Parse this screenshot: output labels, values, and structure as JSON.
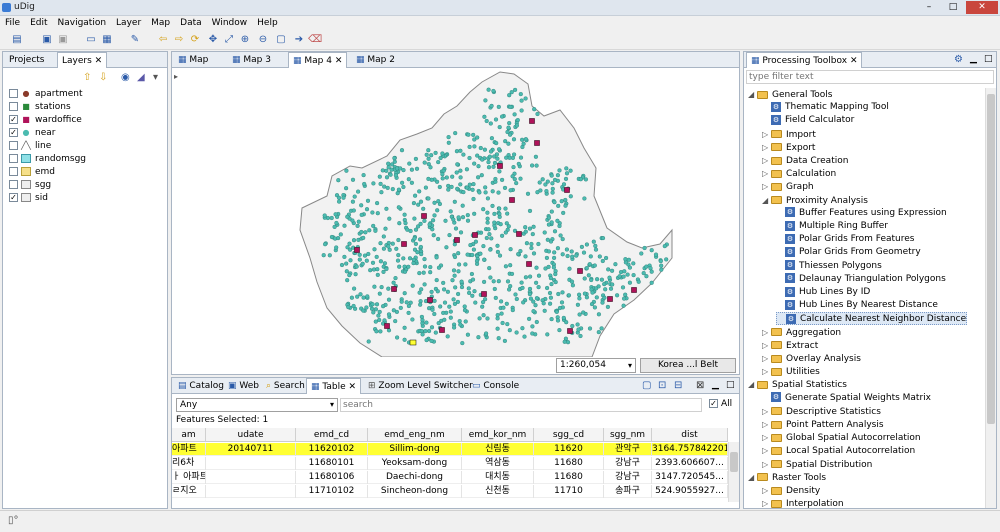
{
  "window": {
    "title": "uDig",
    "min": "–",
    "max": "□",
    "close": "✕"
  },
  "menu": [
    "File",
    "Edit",
    "Navigation",
    "Layer",
    "Map",
    "Data",
    "Window",
    "Help"
  ],
  "left_panel": {
    "tabs": [
      "Projects",
      "Layers"
    ],
    "layers": [
      {
        "name": "apartment",
        "checked": false,
        "symbol": "point-brown"
      },
      {
        "name": "stations",
        "checked": false,
        "symbol": "point-green"
      },
      {
        "name": "wardoffice",
        "checked": true,
        "symbol": "point-magenta"
      },
      {
        "name": "near",
        "checked": true,
        "symbol": "point-cyan"
      },
      {
        "name": "line",
        "checked": false,
        "symbol": "line"
      },
      {
        "name": "randomsgg",
        "checked": false,
        "symbol": "polygon-cyan"
      },
      {
        "name": "emd",
        "checked": false,
        "symbol": "polygon-yellow"
      },
      {
        "name": "sgg",
        "checked": false,
        "symbol": "polygon-gray"
      },
      {
        "name": "sid",
        "checked": true,
        "symbol": "polygon-gray"
      }
    ]
  },
  "map_tabs": [
    "Map",
    "Map 3",
    "Map 4",
    "Map 2"
  ],
  "map_status": {
    "scale": "1:260,054",
    "crs": "Korea ...l Belt"
  },
  "bottom_tabs": [
    "Catalog",
    "Web",
    "Search",
    "Table",
    "Zoom Level Switcher",
    "Console"
  ],
  "table": {
    "filter_value": "Any",
    "search_placeholder": "search",
    "all_label": "All",
    "features_selected": "Features Selected: 1",
    "columns": [
      "am",
      "udate",
      "emd_cd",
      "emd_eng_nm",
      "emd_kor_nm",
      "sgg_cd",
      "sgg_nm",
      "dist"
    ],
    "rows": [
      [
        "아파트",
        "20140711",
        "11620102",
        "Sillim-dong",
        "신림동",
        "11620",
        "관악구",
        "3164.757842201$"
      ],
      [
        "리6차",
        "",
        "11680101",
        "Yeoksam-dong",
        "역삼동",
        "11680",
        "강남구",
        "2393.606607..."
      ],
      [
        "ㅏ 아파트",
        "",
        "11680106",
        "Daechi-dong",
        "대치동",
        "11680",
        "강남구",
        "3147.720545..."
      ],
      [
        "ㄹ지오",
        "",
        "11710102",
        "Sincheon-dong",
        "신천동",
        "11710",
        "송파구",
        "524.9055927..."
      ]
    ]
  },
  "toolbox": {
    "title": "Processing Toolbox",
    "filter_placeholder": "type filter text",
    "tree": [
      {
        "label": "General Tools",
        "level": 1,
        "type": "folder",
        "expanded": true
      },
      {
        "label": "Thematic Mapping Tool",
        "level": 2,
        "type": "tool"
      },
      {
        "label": "Field Calculator",
        "level": 2,
        "type": "tool"
      },
      {
        "label": "Import",
        "level": 2,
        "type": "folder"
      },
      {
        "label": "Export",
        "level": 2,
        "type": "folder"
      },
      {
        "label": "Data Creation",
        "level": 2,
        "type": "folder"
      },
      {
        "label": "Calculation",
        "level": 2,
        "type": "folder"
      },
      {
        "label": "Graph",
        "level": 2,
        "type": "folder"
      },
      {
        "label": "Proximity Analysis",
        "level": 2,
        "type": "folder",
        "expanded": true
      },
      {
        "label": "Buffer Features using Expression",
        "level": 3,
        "type": "tool"
      },
      {
        "label": "Multiple Ring Buffer",
        "level": 3,
        "type": "tool"
      },
      {
        "label": "Polar Grids From Features",
        "level": 3,
        "type": "tool"
      },
      {
        "label": "Polar Grids From Geometry",
        "level": 3,
        "type": "tool"
      },
      {
        "label": "Thiessen Polygons",
        "level": 3,
        "type": "tool"
      },
      {
        "label": "Delaunay Triangulation Polygons",
        "level": 3,
        "type": "tool"
      },
      {
        "label": "Hub Lines By ID",
        "level": 3,
        "type": "tool"
      },
      {
        "label": "Hub Lines By Nearest Distance",
        "level": 3,
        "type": "tool"
      },
      {
        "label": "Calculate Nearest Neighbor Distance",
        "level": 3,
        "type": "tool",
        "selected": true
      },
      {
        "label": "Aggregation",
        "level": 2,
        "type": "folder"
      },
      {
        "label": "Extract",
        "level": 2,
        "type": "folder"
      },
      {
        "label": "Overlay Analysis",
        "level": 2,
        "type": "folder"
      },
      {
        "label": "Utilities",
        "level": 2,
        "type": "folder"
      },
      {
        "label": "Spatial Statistics",
        "level": 1,
        "type": "folder",
        "expanded": true
      },
      {
        "label": "Generate Spatial Weights Matrix",
        "level": 2,
        "type": "tool"
      },
      {
        "label": "Descriptive Statistics",
        "level": 2,
        "type": "folder"
      },
      {
        "label": "Point Pattern Analysis",
        "level": 2,
        "type": "folder"
      },
      {
        "label": "Global Spatial Autocorrelation",
        "level": 2,
        "type": "folder"
      },
      {
        "label": "Local Spatial Autocorrelation",
        "level": 2,
        "type": "folder"
      },
      {
        "label": "Spatial Distribution",
        "level": 2,
        "type": "folder"
      },
      {
        "label": "Raster Tools",
        "level": 1,
        "type": "folder",
        "expanded": true
      },
      {
        "label": "Density",
        "level": 2,
        "type": "folder"
      },
      {
        "label": "Interpolation",
        "level": 2,
        "type": "folder"
      }
    ]
  },
  "colors": {
    "point_fill": "#4bbbb0",
    "ward_fill": "#b0135a",
    "selected_row": "#ffff33",
    "seoul_fill": "#f2f2f2"
  }
}
